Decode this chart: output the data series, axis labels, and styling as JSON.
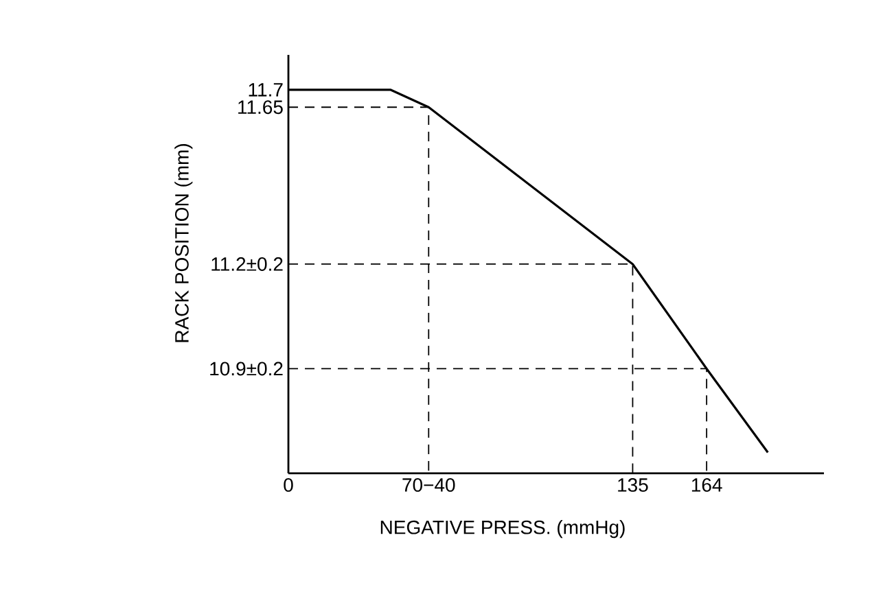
{
  "chart_data": {
    "type": "line",
    "xlabel": "NEGATIVE PRESS. (mmHg)",
    "ylabel": "RACK POSITION (mm)",
    "xlim": [
      0,
      210
    ],
    "ylim": [
      10.6,
      11.8
    ],
    "xticks": [
      0,
      {
        "value": 55,
        "label": "70−40"
      },
      135,
      164
    ],
    "yticks": [
      11.7,
      11.65,
      {
        "value": 11.2,
        "label": "11.2±0.2"
      },
      {
        "value": 10.9,
        "label": "10.9±0.2"
      }
    ],
    "marker": "none",
    "series": [
      {
        "color": "#000000",
        "line_style": "solid",
        "x": [
          0,
          40,
          55,
          135,
          164,
          188
        ],
        "values": [
          11.7,
          11.7,
          11.65,
          11.2,
          10.9,
          10.66
        ]
      },
      {
        "color": "#000000",
        "line_style": "dashed",
        "x": [
          0,
          55,
          55
        ],
        "values": [
          11.65,
          11.65,
          10.6
        ]
      },
      {
        "color": "#000000",
        "line_style": "dashed",
        "x": [
          0,
          135,
          135
        ],
        "values": [
          11.2,
          11.2,
          10.6
        ]
      },
      {
        "color": "#000000",
        "line_style": "dashed",
        "x": [
          0,
          164,
          164
        ],
        "values": [
          10.9,
          10.9,
          10.6
        ]
      }
    ]
  }
}
